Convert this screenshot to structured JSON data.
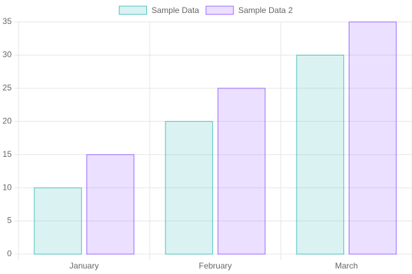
{
  "chart_data": {
    "type": "bar",
    "categories": [
      "January",
      "February",
      "March"
    ],
    "series": [
      {
        "name": "Sample Data",
        "color": "#4bc0c0",
        "values": [
          10,
          20,
          30
        ]
      },
      {
        "name": "Sample Data 2",
        "color": "#9966ff",
        "values": [
          15,
          25,
          35
        ]
      }
    ],
    "ylim": [
      0,
      35
    ],
    "yticks": [
      0,
      5,
      10,
      15,
      20,
      25,
      30,
      35
    ],
    "grid": true,
    "legend": "top"
  }
}
